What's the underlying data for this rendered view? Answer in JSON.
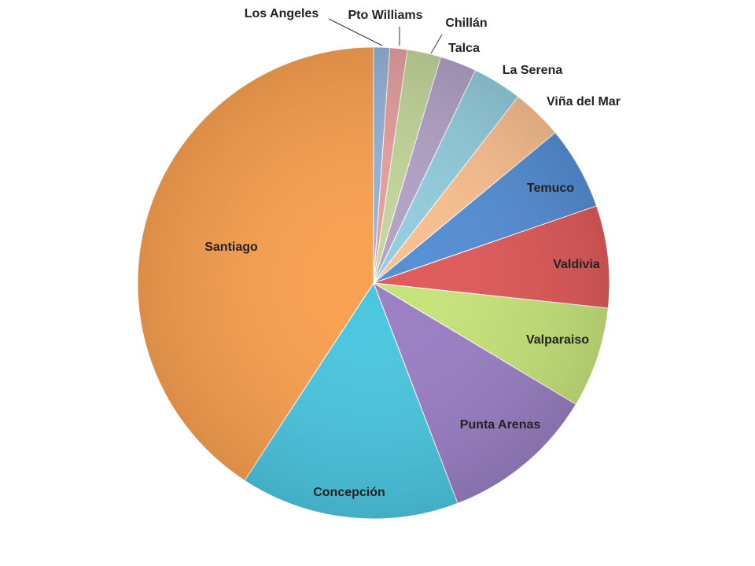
{
  "chart_data": {
    "type": "pie",
    "categories": [
      "Los Angeles",
      "Pto Williams",
      "Chillán",
      "Talca",
      "La Serena",
      "Viña del Mar",
      "Temuco",
      "Valdivia",
      "Valparaiso",
      "Punta Arenas",
      "Concepción",
      "Santiago"
    ],
    "values": [
      1.1,
      1.2,
      2.3,
      2.5,
      3.4,
      3.5,
      5.7,
      7.0,
      6.9,
      10.6,
      15.0,
      40.8
    ],
    "colors": [
      "#95b3d7",
      "#e6a0a0",
      "#c3d69b",
      "#b3a2c7",
      "#93cddd",
      "#fac090",
      "#558ed5",
      "#e05a5a",
      "#c6e47a",
      "#9a7fc4",
      "#4bc6e0",
      "#f9a050"
    ]
  }
}
